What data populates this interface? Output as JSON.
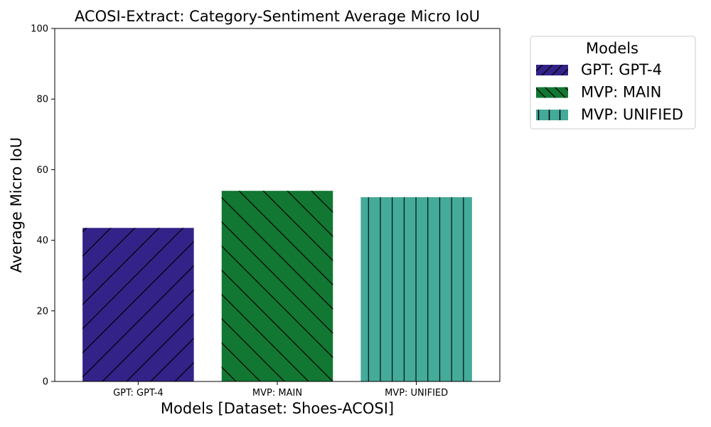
{
  "chart_data": {
    "type": "bar",
    "title": "ACOSI-Extract: Category-Sentiment Average Micro IoU",
    "xlabel": "Models [Dataset: Shoes-ACOSI]",
    "ylabel": "Average Micro IoU",
    "ylim": [
      0,
      100
    ],
    "yticks": [
      0,
      20,
      40,
      60,
      80,
      100
    ],
    "categories": [
      "GPT: GPT-4",
      "MVP: MAIN",
      "MVP: UNIFIED"
    ],
    "values": [
      43.5,
      54.0,
      52.2
    ],
    "colors": [
      "#332288",
      "#117733",
      "#44AA99"
    ],
    "hatches": [
      "forward-diagonal",
      "back-diagonal",
      "vertical"
    ],
    "legend": {
      "title": "Models",
      "placement": "outside-top-right",
      "entries": [
        "GPT: GPT-4",
        "MVP: MAIN",
        "MVP: UNIFIED"
      ]
    }
  }
}
